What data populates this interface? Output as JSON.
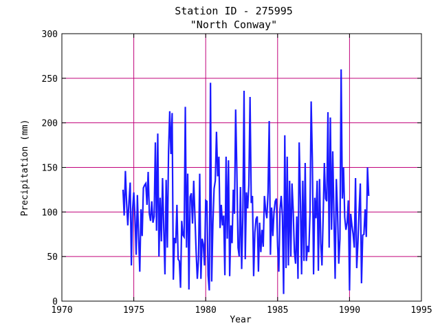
{
  "chart_data": {
    "type": "line",
    "title": "Station ID - 275995",
    "subtitle": "\"North Conway\"",
    "xlabel": "Year",
    "ylabel": "Precipitation (mm)",
    "xlim": [
      1970,
      1995
    ],
    "ylim": [
      0,
      300
    ],
    "xticks": [
      1970,
      1975,
      1980,
      1985,
      1990,
      1995
    ],
    "yticks": [
      0,
      50,
      100,
      150,
      200,
      250,
      300
    ],
    "xtick_labels": [
      "1970",
      "1975",
      "1980",
      "1985",
      "1990",
      "1995"
    ],
    "ytick_labels": [
      "0",
      "50",
      "100",
      "150",
      "200",
      "250",
      "300"
    ],
    "grid": true,
    "grid_color": "#c0007a",
    "line_color": "#1a1aff",
    "series": [
      {
        "name": "",
        "start_year": 1974.25,
        "step_years": 0.0833333,
        "values": [
          125,
          96,
          146,
          110,
          85,
          112,
          133,
          40,
          103,
          122,
          95,
          52,
          119,
          73,
          33,
          103,
          73,
          127,
          130,
          132,
          108,
          145,
          98,
          90,
          112,
          88,
          95,
          178,
          79,
          188,
          50,
          116,
          67,
          138,
          82,
          30,
          136,
          60,
          168,
          213,
          165,
          211,
          24,
          71,
          65,
          108,
          47,
          45,
          15,
          90,
          74,
          72,
          218,
          60,
          143,
          13,
          117,
          121,
          87,
          135,
          96,
          56,
          25,
          47,
          143,
          25,
          70,
          64,
          40,
          113,
          112,
          29,
          12,
          245,
          22,
          87,
          126,
          135,
          190,
          140,
          162,
          82,
          108,
          85,
          96,
          29,
          162,
          70,
          158,
          28,
          85,
          65,
          125,
          98,
          215,
          145,
          60,
          50,
          128,
          36,
          95,
          236,
          47,
          122,
          104,
          130,
          229,
          110,
          118,
          28,
          77,
          92,
          95,
          33,
          88,
          55,
          80,
          61,
          118,
          102,
          93,
          122,
          202,
          52,
          105,
          73,
          100,
          112,
          115,
          62,
          33,
          103,
          118,
          96,
          8,
          186,
          37,
          162,
          40,
          135,
          50,
          132,
          102,
          55,
          42,
          95,
          25,
          178,
          115,
          30,
          135,
          45,
          155,
          45,
          62,
          55,
          97,
          224,
          157,
          30,
          116,
          93,
          135,
          34,
          137,
          65,
          40,
          95,
          155,
          115,
          112,
          212,
          60,
          206,
          80,
          168,
          93,
          25,
          137,
          100,
          42,
          70,
          260,
          115,
          150,
          94,
          80,
          88,
          113,
          12,
          98,
          85,
          75,
          60,
          138,
          37,
          65,
          102,
          132,
          20,
          74,
          75,
          103,
          72,
          150,
          118
        ]
      }
    ]
  }
}
